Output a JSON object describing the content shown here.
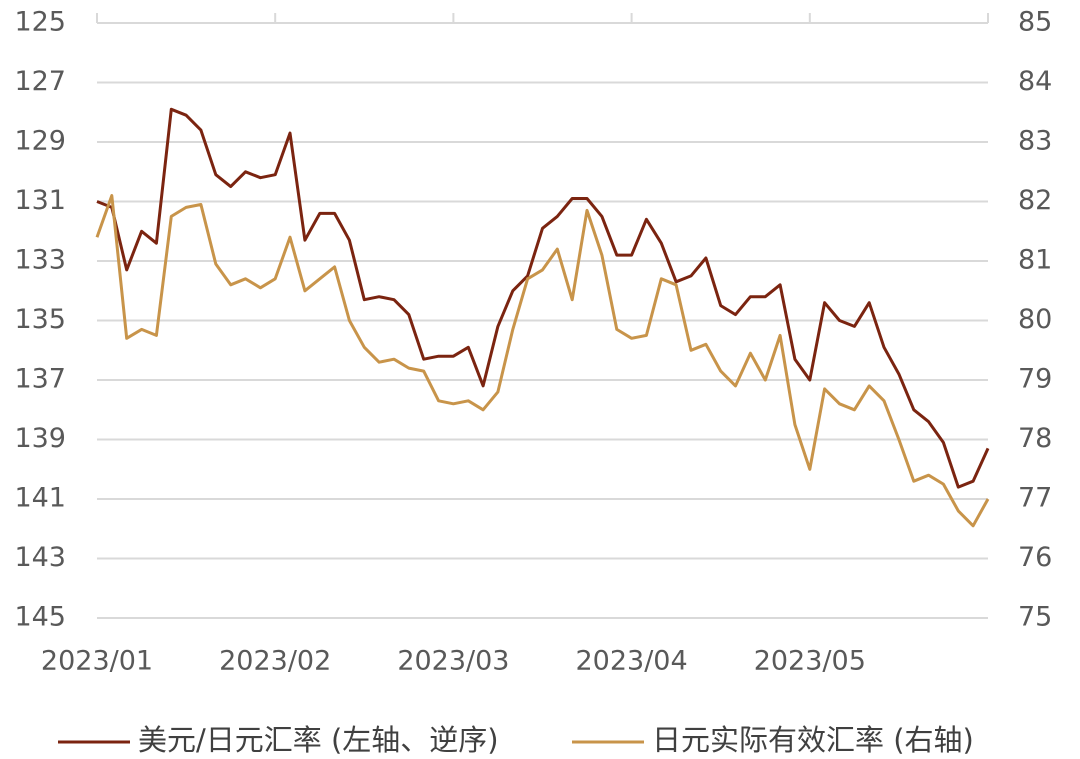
{
  "chart_data": {
    "type": "line",
    "categories": [
      "2023/01",
      null,
      null,
      null,
      null,
      null,
      null,
      null,
      null,
      null,
      null,
      null,
      "2023/02",
      null,
      null,
      null,
      null,
      null,
      null,
      null,
      null,
      null,
      null,
      null,
      "2023/03",
      null,
      null,
      null,
      null,
      null,
      null,
      null,
      null,
      null,
      null,
      null,
      "2023/04",
      null,
      null,
      null,
      null,
      null,
      null,
      null,
      null,
      null,
      null,
      null,
      "2023/05",
      null,
      null,
      null,
      null,
      null,
      null,
      null,
      null,
      null,
      null,
      null,
      null
    ],
    "series": [
      {
        "name": "美元/日元汇率 (左轴、逆序)",
        "color": "#7b2410",
        "axis": "y",
        "values": [
          131.0,
          131.2,
          133.3,
          132.0,
          132.4,
          127.9,
          128.1,
          128.6,
          130.1,
          130.5,
          130.0,
          130.2,
          130.1,
          128.7,
          132.3,
          131.4,
          131.4,
          132.3,
          134.3,
          134.2,
          134.3,
          134.8,
          136.3,
          136.2,
          136.2,
          135.9,
          137.2,
          135.2,
          134.0,
          133.5,
          131.9,
          131.5,
          130.9,
          130.9,
          131.5,
          132.8,
          132.8,
          131.6,
          132.4,
          133.7,
          133.5,
          132.9,
          134.5,
          134.8,
          134.2,
          134.2,
          133.8,
          136.3,
          137.0,
          134.4,
          135.0,
          135.2,
          134.4,
          135.9,
          136.8,
          138.0,
          138.4,
          139.1,
          140.6,
          140.4,
          139.3
        ]
      },
      {
        "name": "日元实际有效汇率 (右轴)",
        "color": "#c8944a",
        "axis": "y2",
        "values": [
          81.4,
          82.1,
          79.7,
          79.85,
          79.75,
          81.75,
          81.9,
          81.95,
          80.95,
          80.6,
          80.7,
          80.55,
          80.7,
          81.4,
          80.5,
          80.7,
          80.9,
          80.0,
          79.55,
          79.3,
          79.35,
          79.2,
          79.15,
          78.65,
          78.6,
          78.65,
          78.5,
          78.8,
          79.85,
          80.7,
          80.85,
          81.2,
          80.35,
          81.85,
          81.1,
          79.85,
          79.7,
          79.75,
          80.7,
          80.6,
          79.5,
          79.6,
          79.15,
          78.9,
          79.45,
          79.0,
          79.75,
          78.25,
          77.5,
          78.85,
          78.6,
          78.5,
          78.9,
          78.65,
          78.0,
          77.3,
          77.4,
          77.25,
          76.8,
          76.55,
          77.0
        ]
      }
    ],
    "ylim": [
      145,
      125
    ],
    "yticks": [
      125,
      127,
      129,
      131,
      133,
      135,
      137,
      139,
      141,
      143,
      145
    ],
    "y2lim": [
      75,
      85
    ],
    "y2ticks": [
      85,
      84,
      83,
      82,
      81,
      80,
      79,
      78,
      77,
      76,
      75
    ],
    "grid": true,
    "legend": "bottom"
  }
}
